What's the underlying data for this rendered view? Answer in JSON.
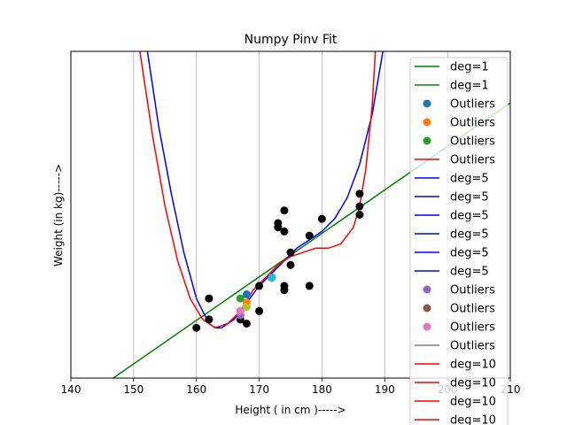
{
  "chart_data": {
    "type": "scatter",
    "title": "Numpy Pinv Fit",
    "xlabel": "Height ( in cm )----->",
    "ylabel": "Weight (in kg)----->",
    "xlim": [
      140,
      210
    ],
    "ylim": [
      35,
      113
    ],
    "xticks": [
      "140",
      "150",
      "160",
      "170",
      "180",
      "190",
      "200",
      "210"
    ],
    "grid": "vertical",
    "legend_position": "top-right",
    "scatter_points": [
      {
        "x": 160,
        "y": 47
      },
      {
        "x": 162,
        "y": 49
      },
      {
        "x": 162,
        "y": 54
      },
      {
        "x": 167,
        "y": 49
      },
      {
        "x": 168,
        "y": 48
      },
      {
        "x": 170,
        "y": 51
      },
      {
        "x": 170,
        "y": 57
      },
      {
        "x": 172,
        "y": 59
      },
      {
        "x": 173,
        "y": 71
      },
      {
        "x": 173,
        "y": 72
      },
      {
        "x": 174,
        "y": 56
      },
      {
        "x": 174,
        "y": 57
      },
      {
        "x": 174,
        "y": 70
      },
      {
        "x": 174,
        "y": 75
      },
      {
        "x": 175,
        "y": 62
      },
      {
        "x": 175,
        "y": 65
      },
      {
        "x": 178,
        "y": 57
      },
      {
        "x": 178,
        "y": 69
      },
      {
        "x": 180,
        "y": 73
      },
      {
        "x": 186,
        "y": 74
      },
      {
        "x": 186,
        "y": 76
      },
      {
        "x": 186,
        "y": 79
      }
    ],
    "outlier_points": [
      {
        "x": 168,
        "y": 55,
        "color": "#1f77b4"
      },
      {
        "x": 168,
        "y": 53,
        "color": "#ff7f0e"
      },
      {
        "x": 167,
        "y": 54,
        "color": "#2ca02c"
      },
      {
        "x": 167,
        "y": 50,
        "color": "#9467bd"
      },
      {
        "x": 167,
        "y": 51,
        "color": "#8c564b"
      },
      {
        "x": 167,
        "y": 51,
        "color": "#e377c2"
      },
      {
        "x": 168,
        "y": 52,
        "color": "#bcbd22"
      },
      {
        "x": 172,
        "y": 59,
        "color": "#17becf"
      }
    ],
    "fit_lines": [
      {
        "name": "deg=1",
        "color": "#008000",
        "degree": 1,
        "points": [
          [
            140,
            28.0
          ],
          [
            210,
            100.7
          ]
        ]
      },
      {
        "name": "deg=5",
        "color": "#0000ff",
        "degree": 5,
        "points": [
          [
            152.2,
            113
          ],
          [
            154,
            95
          ],
          [
            156,
            79
          ],
          [
            158,
            65
          ],
          [
            160,
            54
          ],
          [
            162,
            48
          ],
          [
            163,
            47
          ],
          [
            164,
            47
          ],
          [
            166,
            49
          ],
          [
            168,
            53
          ],
          [
            170,
            57
          ],
          [
            172,
            60
          ],
          [
            174,
            63
          ],
          [
            176,
            66
          ],
          [
            178,
            68
          ],
          [
            180,
            70
          ],
          [
            182,
            73
          ],
          [
            184,
            78
          ],
          [
            186,
            86
          ],
          [
            188,
            98
          ],
          [
            189.7,
            113
          ]
        ]
      },
      {
        "name": "deg=10",
        "color": "#ff0000",
        "degree": 10,
        "points": [
          [
            151,
            113
          ],
          [
            153,
            93
          ],
          [
            155,
            76
          ],
          [
            157,
            63
          ],
          [
            159,
            54
          ],
          [
            161,
            49
          ],
          [
            163,
            47
          ],
          [
            165,
            48
          ],
          [
            167,
            51
          ],
          [
            169,
            56
          ],
          [
            171,
            59
          ],
          [
            173,
            62
          ],
          [
            175,
            64
          ],
          [
            177,
            65
          ],
          [
            179,
            66
          ],
          [
            181,
            66
          ],
          [
            183,
            67
          ],
          [
            185,
            71
          ],
          [
            186,
            76
          ],
          [
            187,
            85
          ],
          [
            188,
            100
          ],
          [
            188.5,
            113
          ]
        ]
      }
    ],
    "legend": [
      {
        "label": "deg=1",
        "kind": "line",
        "color": "#008000"
      },
      {
        "label": "deg=1",
        "kind": "line",
        "color": "#008000"
      },
      {
        "label": "Outliers",
        "kind": "marker",
        "color": "#1f77b4"
      },
      {
        "label": "Outliers",
        "kind": "marker",
        "color": "#ff7f0e"
      },
      {
        "label": "Outliers",
        "kind": "marker",
        "color": "#2ca02c"
      },
      {
        "label": "Outliers",
        "kind": "line",
        "color": "#ff0000"
      },
      {
        "label": "deg=5",
        "kind": "line",
        "color": "#0000ff"
      },
      {
        "label": "deg=5",
        "kind": "line",
        "color": "#0000ff"
      },
      {
        "label": "deg=5",
        "kind": "line",
        "color": "#0000ff"
      },
      {
        "label": "deg=5",
        "kind": "line",
        "color": "#0000ff"
      },
      {
        "label": "deg=5",
        "kind": "line",
        "color": "#0000ff"
      },
      {
        "label": "deg=5",
        "kind": "line",
        "color": "#0000ff"
      },
      {
        "label": "Outliers",
        "kind": "marker",
        "color": "#9467bd"
      },
      {
        "label": "Outliers",
        "kind": "marker",
        "color": "#8c564b"
      },
      {
        "label": "Outliers",
        "kind": "marker",
        "color": "#e377c2"
      },
      {
        "label": "Outliers",
        "kind": "line",
        "color": "#7f7f7f"
      },
      {
        "label": "deg=10",
        "kind": "line",
        "color": "#ff0000"
      },
      {
        "label": "deg=10",
        "kind": "line",
        "color": "#ff0000"
      },
      {
        "label": "deg=10",
        "kind": "line",
        "color": "#ff0000"
      },
      {
        "label": "deg=10",
        "kind": "line",
        "color": "#ff0000"
      }
    ]
  }
}
